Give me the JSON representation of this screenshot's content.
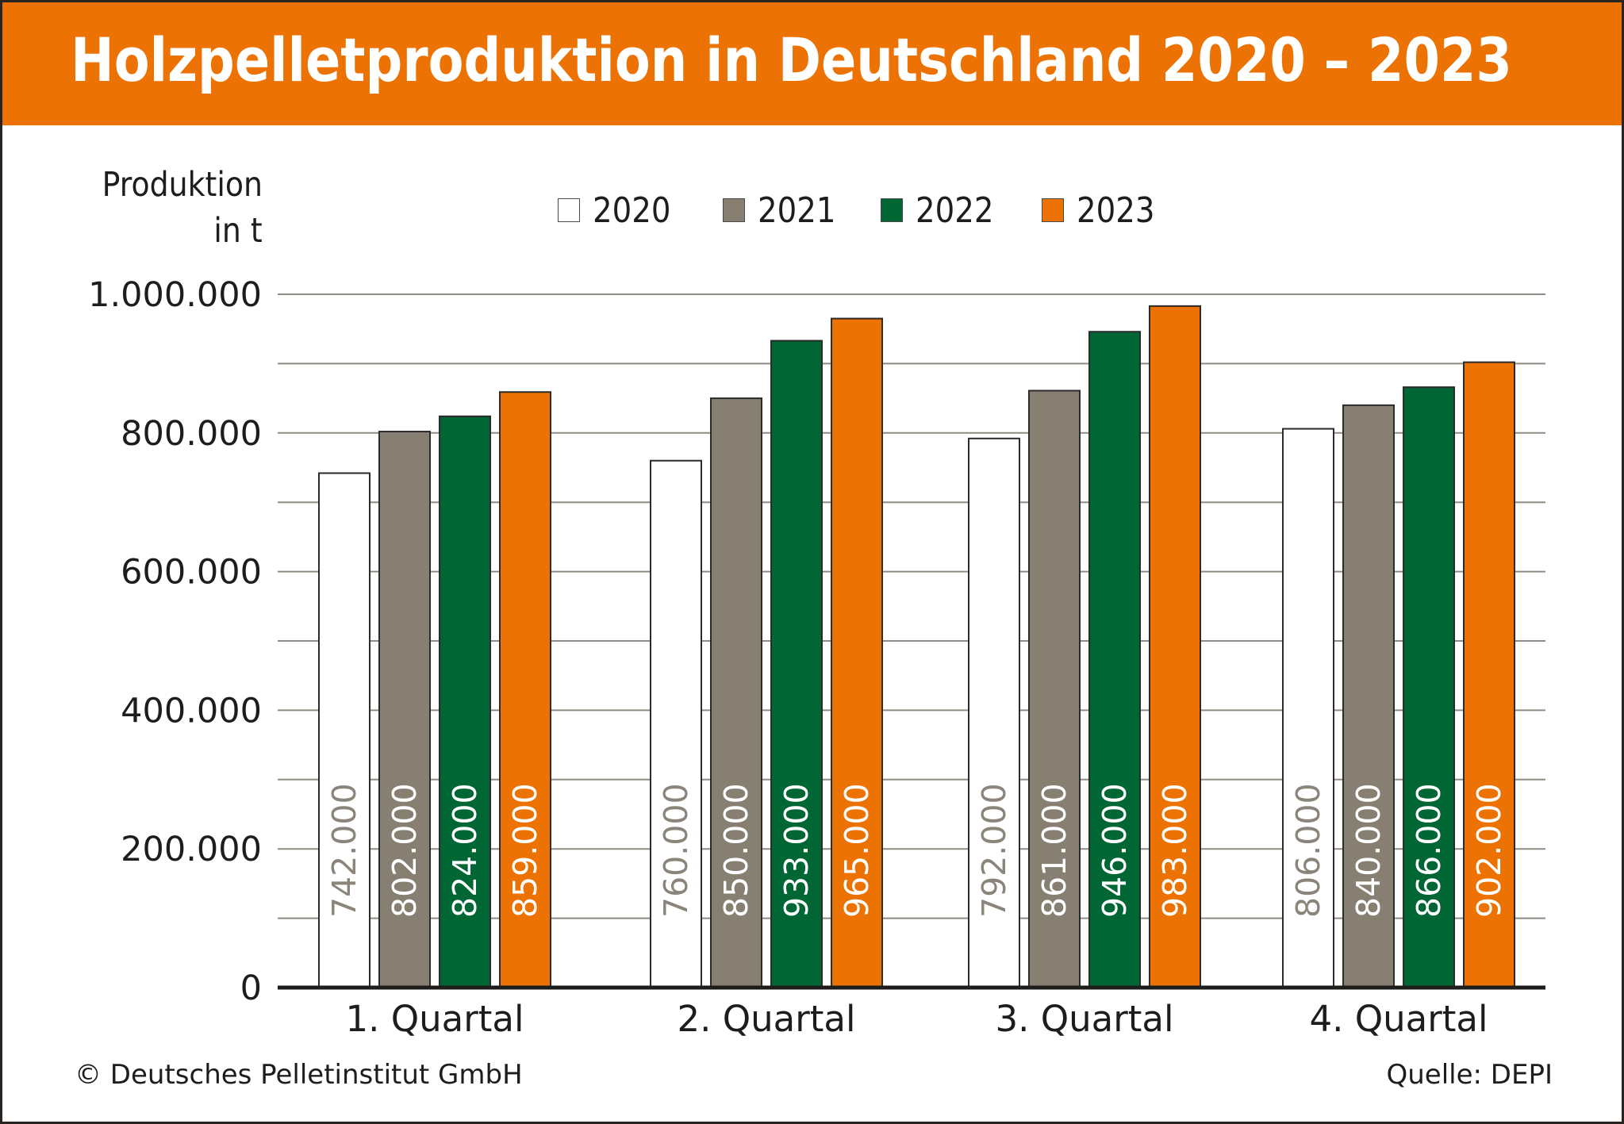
{
  "header": {
    "title": "Holzpelletproduktion in Deutschland 2020 – 2023"
  },
  "footer": {
    "copyright": "© Deutsches Pelletinstitut GmbH",
    "source": "Quelle: DEPI"
  },
  "chart_data": {
    "type": "bar",
    "title": "Holzpelletproduktion in Deutschland 2020 – 2023",
    "xlabel": "",
    "ylabel": [
      "Produktion",
      "in t"
    ],
    "ylim": [
      0,
      1000000
    ],
    "yticks": [
      0,
      200000,
      400000,
      600000,
      800000,
      1000000
    ],
    "ytick_labels": [
      "0",
      "200.000",
      "400.000",
      "600.000",
      "800.000",
      "1.000.000"
    ],
    "grid_step": 100000,
    "grid": true,
    "legend_position": "top-center",
    "categories": [
      "1. Quartal",
      "2. Quartal",
      "3. Quartal",
      "4. Quartal"
    ],
    "series": [
      {
        "name": "2020",
        "color": "#ffffff",
        "label_color": "#8a847a",
        "values": [
          742000,
          760000,
          792000,
          806000
        ],
        "labels": [
          "742.000",
          "760.000",
          "792.000",
          "806.000"
        ]
      },
      {
        "name": "2021",
        "color": "#877f72",
        "label_color": "#ffffff",
        "values": [
          802000,
          850000,
          861000,
          840000
        ],
        "labels": [
          "802.000",
          "850.000",
          "861.000",
          "840.000"
        ]
      },
      {
        "name": "2022",
        "color": "#006633",
        "label_color": "#ffffff",
        "values": [
          824000,
          933000,
          946000,
          866000
        ],
        "labels": [
          "824.000",
          "933.000",
          "946.000",
          "866.000"
        ]
      },
      {
        "name": "2023",
        "color": "#ec7203",
        "label_color": "#ffffff",
        "values": [
          859000,
          965000,
          983000,
          902000
        ],
        "labels": [
          "859.000",
          "965.000",
          "983.000",
          "902.000"
        ]
      }
    ]
  }
}
